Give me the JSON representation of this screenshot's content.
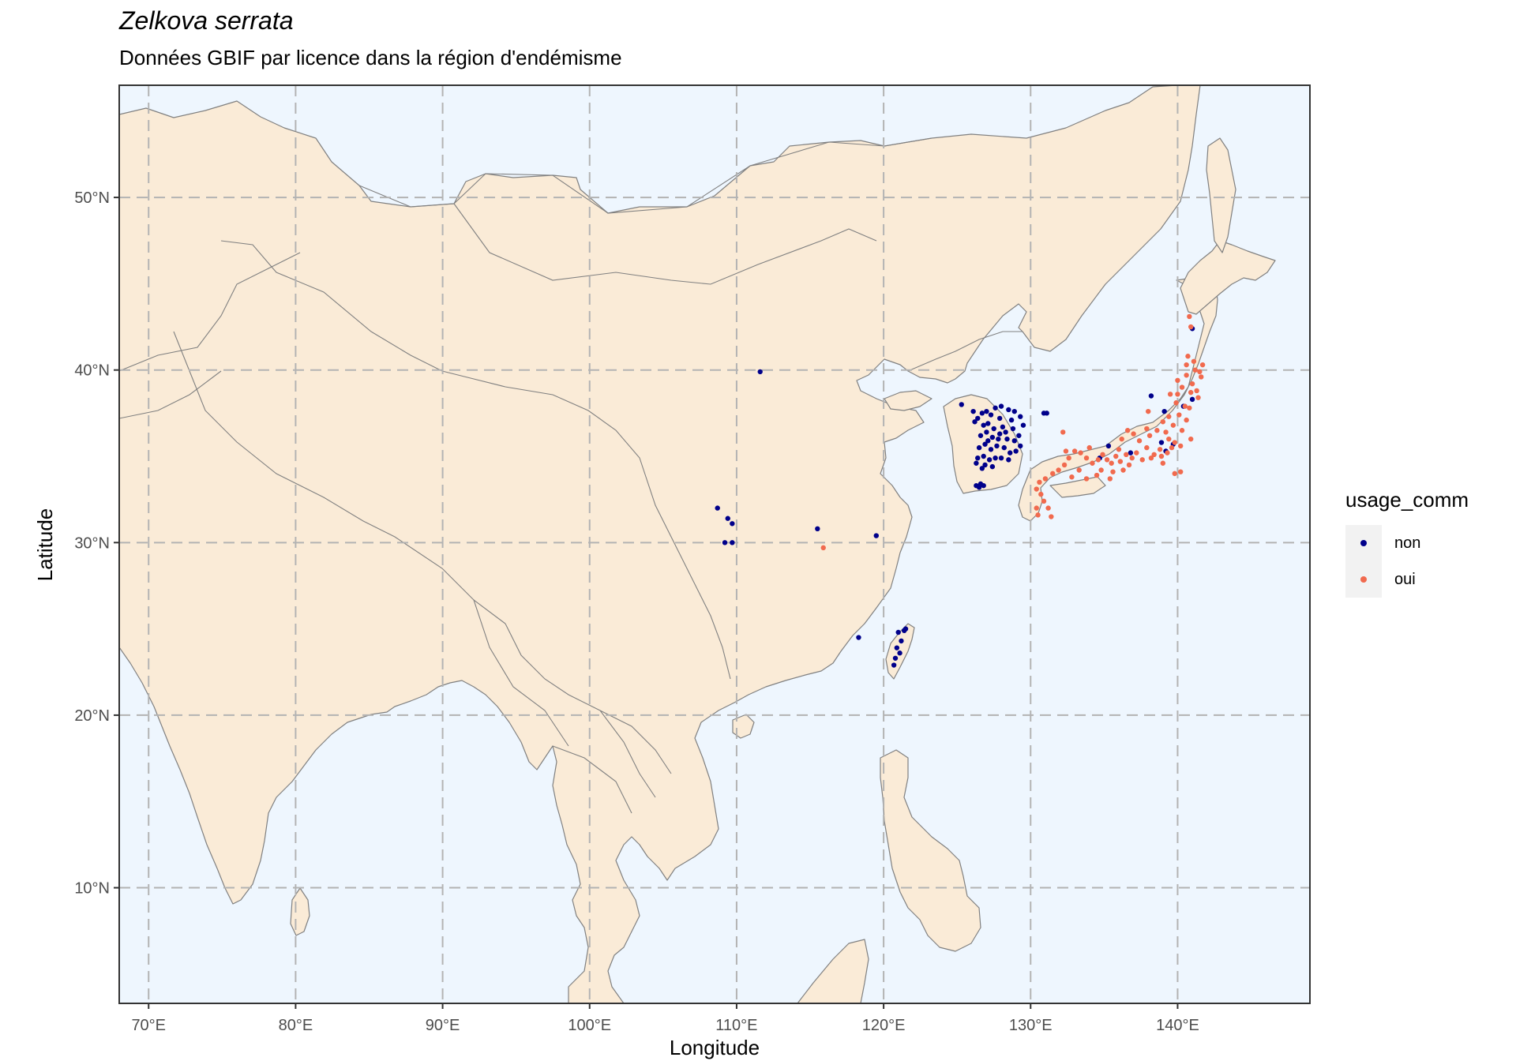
{
  "title": "Zelkova serrata",
  "subtitle": "Données GBIF par licence dans la région d'endémisme",
  "colors": {
    "land": "#faebd7",
    "ocean": "#eef6fe",
    "border": "#808080",
    "grid": "#b3b3b3",
    "non": "#00008b",
    "oui": "#f16a4e"
  },
  "legend": {
    "title": "usage_comm",
    "items": [
      {
        "label": "non",
        "color": "#00008b"
      },
      {
        "label": "oui",
        "color": "#f16a4e"
      }
    ]
  },
  "chart_data": {
    "type": "scatter",
    "xlabel": "Longitude",
    "ylabel": "Latitude",
    "xlim": [
      68,
      149
    ],
    "ylim": [
      3.3,
      56.5
    ],
    "x_ticks": [
      {
        "value": 70,
        "label": "70°E"
      },
      {
        "value": 80,
        "label": "80°E"
      },
      {
        "value": 90,
        "label": "90°E"
      },
      {
        "value": 100,
        "label": "100°E"
      },
      {
        "value": 110,
        "label": "110°E"
      },
      {
        "value": 120,
        "label": "120°E"
      },
      {
        "value": 130,
        "label": "130°E"
      },
      {
        "value": 140,
        "label": "140°E"
      }
    ],
    "y_ticks": [
      {
        "value": 10,
        "label": "10°N"
      },
      {
        "value": 20,
        "label": "20°N"
      },
      {
        "value": 30,
        "label": "30°N"
      },
      {
        "value": 40,
        "label": "40°N"
      },
      {
        "value": 50,
        "label": "50°N"
      }
    ],
    "grid": true,
    "legend_position": "right",
    "series": [
      {
        "name": "non",
        "points": [
          [
            111.6,
            39.9
          ],
          [
            108.7,
            32.0
          ],
          [
            109.4,
            31.4
          ],
          [
            109.7,
            31.1
          ],
          [
            109.2,
            30.0
          ],
          [
            109.7,
            30.0
          ],
          [
            115.5,
            30.8
          ],
          [
            119.5,
            30.4
          ],
          [
            118.3,
            24.5
          ],
          [
            125.3,
            38.0
          ],
          [
            126.1,
            37.6
          ],
          [
            126.4,
            37.2
          ],
          [
            126.7,
            37.5
          ],
          [
            127.0,
            37.6
          ],
          [
            127.3,
            37.4
          ],
          [
            127.6,
            37.8
          ],
          [
            128.0,
            37.9
          ],
          [
            127.9,
            37.2
          ],
          [
            128.5,
            37.7
          ],
          [
            128.7,
            37.1
          ],
          [
            126.8,
            36.8
          ],
          [
            127.1,
            36.9
          ],
          [
            127.5,
            36.6
          ],
          [
            128.1,
            36.7
          ],
          [
            128.8,
            36.6
          ],
          [
            129.2,
            36.2
          ],
          [
            126.6,
            36.2
          ],
          [
            127.0,
            36.4
          ],
          [
            127.4,
            36.1
          ],
          [
            127.9,
            36.3
          ],
          [
            128.4,
            36.0
          ],
          [
            128.9,
            35.9
          ],
          [
            129.3,
            35.6
          ],
          [
            126.5,
            35.5
          ],
          [
            126.9,
            35.7
          ],
          [
            127.3,
            35.4
          ],
          [
            127.7,
            35.6
          ],
          [
            128.2,
            35.5
          ],
          [
            128.6,
            35.2
          ],
          [
            129.0,
            35.3
          ],
          [
            126.4,
            34.9
          ],
          [
            126.8,
            35.0
          ],
          [
            127.2,
            34.8
          ],
          [
            127.6,
            34.9
          ],
          [
            128.0,
            34.9
          ],
          [
            128.5,
            34.8
          ],
          [
            126.3,
            34.6
          ],
          [
            126.9,
            34.5
          ],
          [
            127.4,
            34.4
          ],
          [
            126.7,
            34.3
          ],
          [
            126.3,
            33.3
          ],
          [
            126.6,
            33.4
          ],
          [
            126.8,
            33.3
          ],
          [
            126.5,
            33.2
          ],
          [
            129.5,
            36.8
          ],
          [
            129.3,
            37.3
          ],
          [
            128.9,
            37.6
          ],
          [
            126.2,
            37.0
          ],
          [
            127.8,
            36.0
          ],
          [
            127.1,
            35.9
          ],
          [
            128.3,
            36.4
          ],
          [
            130.9,
            37.5
          ],
          [
            131.1,
            37.5
          ],
          [
            121.0,
            24.8
          ],
          [
            121.2,
            24.3
          ],
          [
            120.9,
            23.9
          ],
          [
            121.4,
            24.9
          ],
          [
            121.5,
            25.0
          ],
          [
            121.1,
            23.6
          ],
          [
            120.8,
            23.3
          ],
          [
            120.7,
            22.9
          ],
          [
            138.2,
            38.5
          ],
          [
            139.1,
            37.6
          ],
          [
            140.4,
            37.9
          ],
          [
            141.0,
            38.3
          ],
          [
            139.2,
            35.3
          ],
          [
            138.9,
            35.8
          ],
          [
            139.7,
            35.7
          ],
          [
            141.0,
            42.4
          ],
          [
            134.7,
            34.9
          ],
          [
            135.3,
            35.6
          ],
          [
            136.8,
            35.2
          ]
        ]
      },
      {
        "name": "oui",
        "points": [
          [
            115.9,
            29.7
          ],
          [
            140.8,
            43.1
          ],
          [
            140.9,
            42.5
          ],
          [
            140.7,
            40.8
          ],
          [
            141.1,
            40.5
          ],
          [
            141.2,
            40.0
          ],
          [
            140.6,
            39.7
          ],
          [
            141.6,
            39.6
          ],
          [
            141.0,
            39.2
          ],
          [
            140.3,
            39.0
          ],
          [
            140.9,
            38.7
          ],
          [
            141.4,
            38.4
          ],
          [
            140.0,
            38.6
          ],
          [
            139.9,
            38.1
          ],
          [
            140.5,
            37.9
          ],
          [
            140.1,
            37.4
          ],
          [
            140.6,
            37.1
          ],
          [
            139.4,
            37.3
          ],
          [
            139.0,
            37.0
          ],
          [
            139.7,
            36.8
          ],
          [
            140.3,
            36.5
          ],
          [
            139.2,
            36.4
          ],
          [
            138.6,
            36.5
          ],
          [
            138.1,
            36.2
          ],
          [
            139.4,
            36.0
          ],
          [
            139.8,
            35.8
          ],
          [
            140.2,
            35.6
          ],
          [
            139.6,
            35.5
          ],
          [
            139.3,
            35.2
          ],
          [
            138.8,
            35.4
          ],
          [
            138.4,
            35.1
          ],
          [
            137.9,
            35.5
          ],
          [
            137.4,
            35.9
          ],
          [
            137.0,
            36.3
          ],
          [
            136.6,
            36.5
          ],
          [
            136.2,
            36.0
          ],
          [
            137.2,
            35.2
          ],
          [
            136.9,
            34.9
          ],
          [
            136.5,
            35.1
          ],
          [
            136.1,
            34.7
          ],
          [
            135.8,
            35.0
          ],
          [
            135.5,
            34.6
          ],
          [
            135.2,
            34.8
          ],
          [
            134.9,
            35.1
          ],
          [
            134.6,
            34.8
          ],
          [
            134.2,
            34.6
          ],
          [
            133.8,
            34.9
          ],
          [
            133.4,
            35.2
          ],
          [
            133.0,
            35.3
          ],
          [
            132.6,
            34.9
          ],
          [
            132.3,
            34.5
          ],
          [
            131.9,
            34.2
          ],
          [
            131.5,
            34.0
          ],
          [
            133.3,
            34.2
          ],
          [
            132.8,
            33.8
          ],
          [
            133.8,
            33.7
          ],
          [
            134.5,
            33.9
          ],
          [
            135.6,
            34.1
          ],
          [
            135.4,
            33.7
          ],
          [
            136.3,
            34.2
          ],
          [
            131.0,
            33.7
          ],
          [
            130.6,
            33.5
          ],
          [
            130.4,
            33.1
          ],
          [
            130.7,
            32.8
          ],
          [
            130.9,
            32.4
          ],
          [
            131.2,
            32.0
          ],
          [
            130.5,
            31.6
          ],
          [
            131.4,
            31.5
          ],
          [
            130.4,
            32.0
          ],
          [
            132.2,
            36.4
          ],
          [
            138.0,
            37.6
          ],
          [
            141.3,
            38.8
          ],
          [
            141.5,
            39.9
          ],
          [
            141.7,
            40.3
          ],
          [
            140.6,
            40.3
          ],
          [
            140.0,
            39.4
          ],
          [
            139.0,
            34.6
          ],
          [
            138.2,
            34.9
          ],
          [
            137.6,
            34.8
          ],
          [
            140.9,
            36.0
          ],
          [
            136.7,
            34.5
          ],
          [
            140.2,
            34.1
          ],
          [
            134.0,
            35.5
          ],
          [
            132.4,
            35.3
          ],
          [
            139.8,
            34.0
          ],
          [
            138.9,
            35.0
          ],
          [
            137.9,
            36.6
          ],
          [
            140.8,
            37.8
          ],
          [
            134.8,
            34.2
          ],
          [
            136.0,
            35.4
          ],
          [
            139.5,
            38.6
          ]
        ]
      }
    ]
  }
}
